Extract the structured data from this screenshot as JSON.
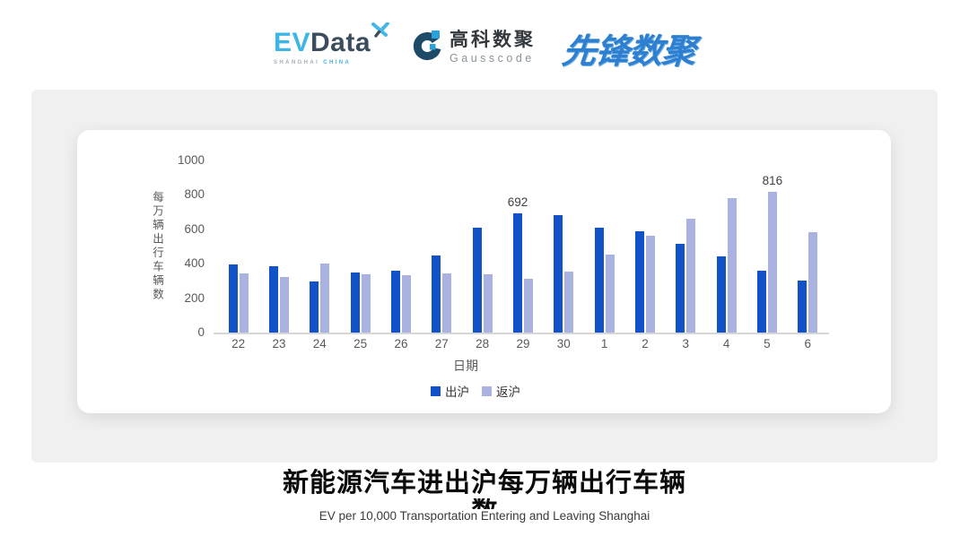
{
  "header": {
    "evdata": {
      "ev": "EV",
      "data": "Data",
      "sub_left": "SHANGHAI",
      "sub_right": "CHINA"
    },
    "gausscode": {
      "cn": "高科数聚",
      "en": "Gausscode"
    },
    "pioneer": {
      "text": "先锋数聚"
    }
  },
  "chart_data": {
    "type": "bar",
    "categories": [
      "22",
      "23",
      "24",
      "25",
      "26",
      "27",
      "28",
      "29",
      "30",
      "1",
      "2",
      "3",
      "4",
      "5",
      "6"
    ],
    "series": [
      {
        "name": "出沪",
        "color": "#1152c9",
        "values": [
          394,
          385,
          295,
          347,
          361,
          446,
          607,
          692,
          681,
          608,
          589,
          516,
          441,
          361,
          302
        ]
      },
      {
        "name": "返沪",
        "color": "#a9b2e0",
        "values": [
          346,
          325,
          399,
          338,
          333,
          346,
          338,
          311,
          354,
          452,
          563,
          661,
          781,
          816,
          582
        ]
      }
    ],
    "annotations": [
      {
        "series": 0,
        "category_index": 7,
        "label": "692"
      },
      {
        "series": 1,
        "category_index": 13,
        "label": "816"
      }
    ],
    "ylabel": "每万辆出行车辆数",
    "xlabel": "日期",
    "yticks": [
      0,
      200,
      400,
      600,
      800,
      1000
    ],
    "ylim": [
      0,
      1000
    ],
    "grid": false,
    "legend_position": "bottom"
  },
  "footer": {
    "title_line1": "新能源汽车进出沪每万辆出行车辆",
    "title_line2": "数",
    "subtitle": "EV per 10,000 Transportation Entering and Leaving Shanghai"
  },
  "colors": {
    "panel_bg": "#f0f0f0",
    "card_bg": "#ffffff",
    "axis_gray": "#595959",
    "brand_light_blue": "#3db5e6",
    "brand_dark_slate": "#3b4d5c",
    "pioneer_blue": "#2e7fd0"
  }
}
